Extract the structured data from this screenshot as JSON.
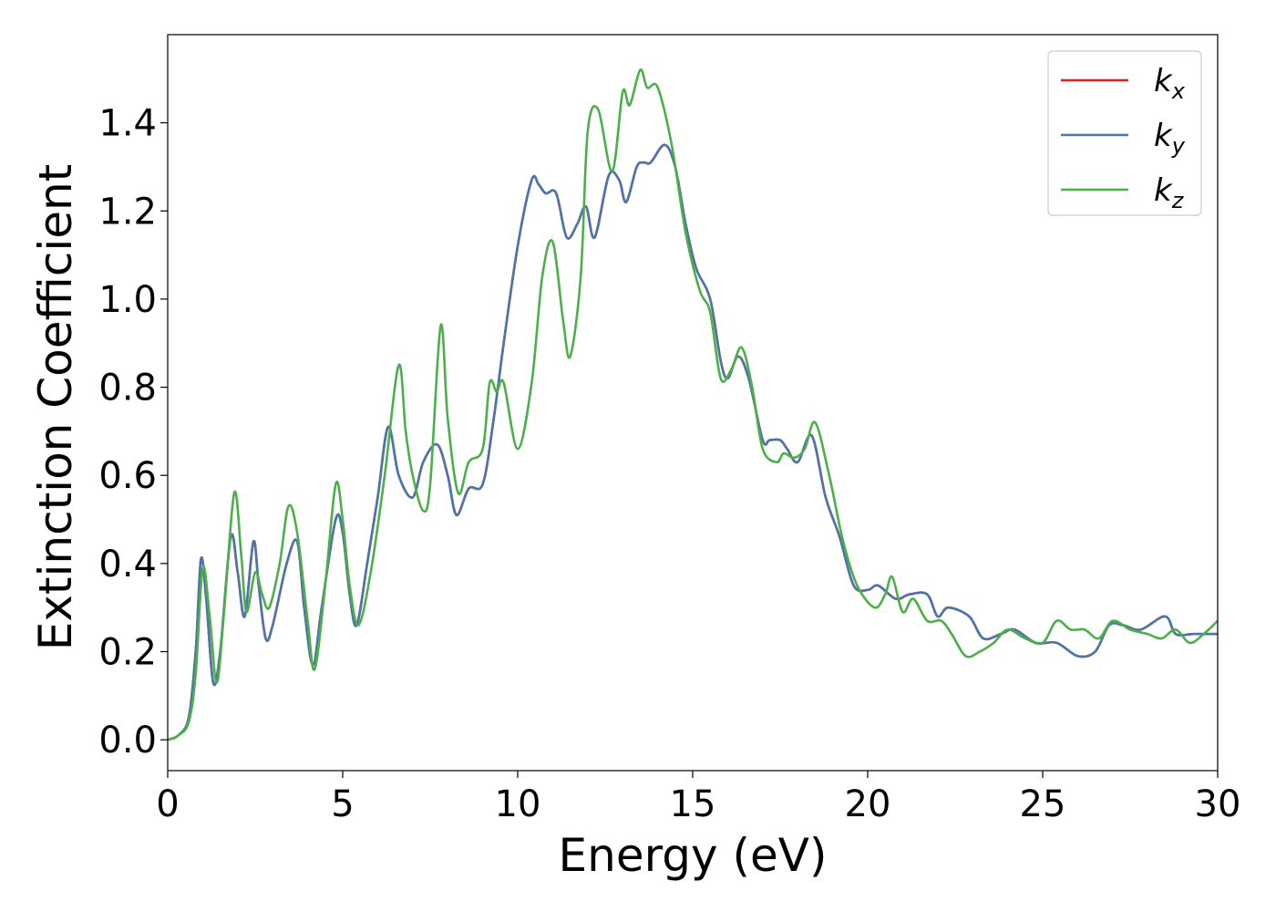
{
  "chart_data": {
    "type": "line",
    "title": "",
    "xlabel": "Energy (eV)",
    "ylabel": "Extinction Coefficient",
    "xlim": [
      0,
      30
    ],
    "ylim": [
      -0.07,
      1.6
    ],
    "xticks": [
      0,
      5,
      10,
      15,
      20,
      25,
      30
    ],
    "yticks": [
      "0.0",
      "0.2",
      "0.4",
      "0.6",
      "0.8",
      "1.0",
      "1.2",
      "1.4"
    ],
    "grid": false,
    "legend_position": "top-right",
    "series": [
      {
        "name": "k",
        "subscript": "x",
        "color": "#e41a1c",
        "points": [
          [
            0,
            0
          ],
          [
            0.3,
            0.01
          ],
          [
            0.6,
            0.05
          ],
          [
            0.8,
            0.2
          ],
          [
            0.95,
            0.41
          ],
          [
            1.1,
            0.32
          ],
          [
            1.3,
            0.13
          ],
          [
            1.5,
            0.2
          ],
          [
            1.8,
            0.46
          ],
          [
            2.0,
            0.38
          ],
          [
            2.2,
            0.28
          ],
          [
            2.45,
            0.45
          ],
          [
            2.6,
            0.35
          ],
          [
            2.8,
            0.23
          ],
          [
            3.0,
            0.26
          ],
          [
            3.4,
            0.4
          ],
          [
            3.7,
            0.45
          ],
          [
            3.9,
            0.3
          ],
          [
            4.15,
            0.17
          ],
          [
            4.4,
            0.3
          ],
          [
            4.8,
            0.5
          ],
          [
            5.0,
            0.47
          ],
          [
            5.2,
            0.33
          ],
          [
            5.4,
            0.26
          ],
          [
            5.7,
            0.4
          ],
          [
            6.0,
            0.55
          ],
          [
            6.3,
            0.71
          ],
          [
            6.6,
            0.6
          ],
          [
            7.0,
            0.55
          ],
          [
            7.3,
            0.63
          ],
          [
            7.7,
            0.67
          ],
          [
            8.0,
            0.6
          ],
          [
            8.25,
            0.51
          ],
          [
            8.6,
            0.57
          ],
          [
            9.0,
            0.58
          ],
          [
            9.3,
            0.72
          ],
          [
            9.6,
            0.9
          ],
          [
            10.0,
            1.12
          ],
          [
            10.4,
            1.27
          ],
          [
            10.6,
            1.26
          ],
          [
            10.8,
            1.24
          ],
          [
            11.1,
            1.24
          ],
          [
            11.4,
            1.14
          ],
          [
            11.7,
            1.17
          ],
          [
            11.95,
            1.21
          ],
          [
            12.2,
            1.14
          ],
          [
            12.6,
            1.28
          ],
          [
            12.9,
            1.27
          ],
          [
            13.1,
            1.22
          ],
          [
            13.4,
            1.3
          ],
          [
            13.6,
            1.31
          ],
          [
            13.8,
            1.31
          ],
          [
            14.2,
            1.35
          ],
          [
            14.5,
            1.3
          ],
          [
            14.8,
            1.17
          ],
          [
            15.1,
            1.07
          ],
          [
            15.5,
            1.0
          ],
          [
            15.8,
            0.86
          ],
          [
            16.0,
            0.82
          ],
          [
            16.3,
            0.87
          ],
          [
            16.6,
            0.82
          ],
          [
            17.0,
            0.68
          ],
          [
            17.2,
            0.68
          ],
          [
            17.5,
            0.68
          ],
          [
            17.7,
            0.66
          ],
          [
            18.0,
            0.63
          ],
          [
            18.4,
            0.69
          ],
          [
            18.8,
            0.55
          ],
          [
            19.2,
            0.46
          ],
          [
            19.6,
            0.35
          ],
          [
            20.0,
            0.34
          ],
          [
            20.3,
            0.35
          ],
          [
            20.8,
            0.32
          ],
          [
            21.2,
            0.33
          ],
          [
            21.7,
            0.33
          ],
          [
            22.0,
            0.28
          ],
          [
            22.3,
            0.3
          ],
          [
            22.9,
            0.28
          ],
          [
            23.3,
            0.23
          ],
          [
            23.8,
            0.24
          ],
          [
            24.2,
            0.25
          ],
          [
            24.8,
            0.22
          ],
          [
            25.4,
            0.22
          ],
          [
            26.0,
            0.19
          ],
          [
            26.5,
            0.2
          ],
          [
            26.9,
            0.26
          ],
          [
            27.3,
            0.26
          ],
          [
            27.8,
            0.25
          ],
          [
            28.5,
            0.28
          ],
          [
            28.8,
            0.24
          ],
          [
            29.3,
            0.24
          ],
          [
            30.0,
            0.24
          ]
        ]
      },
      {
        "name": "k",
        "subscript": "y",
        "color": "#4a76ac",
        "points": [
          [
            0,
            0
          ],
          [
            0.3,
            0.01
          ],
          [
            0.6,
            0.05
          ],
          [
            0.8,
            0.2
          ],
          [
            0.95,
            0.41
          ],
          [
            1.1,
            0.32
          ],
          [
            1.3,
            0.13
          ],
          [
            1.5,
            0.2
          ],
          [
            1.8,
            0.46
          ],
          [
            2.0,
            0.38
          ],
          [
            2.2,
            0.28
          ],
          [
            2.45,
            0.45
          ],
          [
            2.6,
            0.35
          ],
          [
            2.8,
            0.23
          ],
          [
            3.0,
            0.26
          ],
          [
            3.4,
            0.4
          ],
          [
            3.7,
            0.45
          ],
          [
            3.9,
            0.3
          ],
          [
            4.15,
            0.17
          ],
          [
            4.4,
            0.3
          ],
          [
            4.8,
            0.5
          ],
          [
            5.0,
            0.47
          ],
          [
            5.2,
            0.33
          ],
          [
            5.4,
            0.26
          ],
          [
            5.7,
            0.4
          ],
          [
            6.0,
            0.55
          ],
          [
            6.3,
            0.71
          ],
          [
            6.6,
            0.6
          ],
          [
            7.0,
            0.55
          ],
          [
            7.3,
            0.63
          ],
          [
            7.7,
            0.67
          ],
          [
            8.0,
            0.6
          ],
          [
            8.25,
            0.51
          ],
          [
            8.6,
            0.57
          ],
          [
            9.0,
            0.58
          ],
          [
            9.3,
            0.72
          ],
          [
            9.6,
            0.9
          ],
          [
            10.0,
            1.12
          ],
          [
            10.4,
            1.27
          ],
          [
            10.6,
            1.26
          ],
          [
            10.8,
            1.24
          ],
          [
            11.1,
            1.24
          ],
          [
            11.4,
            1.14
          ],
          [
            11.7,
            1.17
          ],
          [
            11.95,
            1.21
          ],
          [
            12.2,
            1.14
          ],
          [
            12.6,
            1.28
          ],
          [
            12.9,
            1.27
          ],
          [
            13.1,
            1.22
          ],
          [
            13.4,
            1.3
          ],
          [
            13.6,
            1.31
          ],
          [
            13.8,
            1.31
          ],
          [
            14.2,
            1.35
          ],
          [
            14.5,
            1.3
          ],
          [
            14.8,
            1.17
          ],
          [
            15.1,
            1.07
          ],
          [
            15.5,
            1.0
          ],
          [
            15.8,
            0.86
          ],
          [
            16.0,
            0.82
          ],
          [
            16.3,
            0.87
          ],
          [
            16.6,
            0.82
          ],
          [
            17.0,
            0.68
          ],
          [
            17.2,
            0.68
          ],
          [
            17.5,
            0.68
          ],
          [
            17.7,
            0.66
          ],
          [
            18.0,
            0.63
          ],
          [
            18.4,
            0.69
          ],
          [
            18.8,
            0.55
          ],
          [
            19.2,
            0.46
          ],
          [
            19.6,
            0.35
          ],
          [
            20.0,
            0.34
          ],
          [
            20.3,
            0.35
          ],
          [
            20.8,
            0.32
          ],
          [
            21.2,
            0.33
          ],
          [
            21.7,
            0.33
          ],
          [
            22.0,
            0.28
          ],
          [
            22.3,
            0.3
          ],
          [
            22.9,
            0.28
          ],
          [
            23.3,
            0.23
          ],
          [
            23.8,
            0.24
          ],
          [
            24.2,
            0.25
          ],
          [
            24.8,
            0.22
          ],
          [
            25.4,
            0.22
          ],
          [
            26.0,
            0.19
          ],
          [
            26.5,
            0.2
          ],
          [
            26.9,
            0.26
          ],
          [
            27.3,
            0.26
          ],
          [
            27.8,
            0.25
          ],
          [
            28.5,
            0.28
          ],
          [
            28.8,
            0.24
          ],
          [
            29.3,
            0.24
          ],
          [
            30.0,
            0.24
          ]
        ]
      },
      {
        "name": "k",
        "subscript": "z",
        "color": "#4daf4a",
        "points": [
          [
            0,
            0
          ],
          [
            0.3,
            0.01
          ],
          [
            0.6,
            0.04
          ],
          [
            0.8,
            0.15
          ],
          [
            1.0,
            0.39
          ],
          [
            1.2,
            0.28
          ],
          [
            1.4,
            0.13
          ],
          [
            1.6,
            0.28
          ],
          [
            1.9,
            0.56
          ],
          [
            2.1,
            0.42
          ],
          [
            2.25,
            0.29
          ],
          [
            2.5,
            0.38
          ],
          [
            2.7,
            0.33
          ],
          [
            2.9,
            0.3
          ],
          [
            3.2,
            0.4
          ],
          [
            3.45,
            0.53
          ],
          [
            3.7,
            0.47
          ],
          [
            4.0,
            0.27
          ],
          [
            4.2,
            0.16
          ],
          [
            4.5,
            0.35
          ],
          [
            4.8,
            0.58
          ],
          [
            5.0,
            0.5
          ],
          [
            5.2,
            0.35
          ],
          [
            5.45,
            0.26
          ],
          [
            5.8,
            0.38
          ],
          [
            6.2,
            0.6
          ],
          [
            6.6,
            0.85
          ],
          [
            6.8,
            0.7
          ],
          [
            7.0,
            0.6
          ],
          [
            7.3,
            0.52
          ],
          [
            7.5,
            0.58
          ],
          [
            7.8,
            0.94
          ],
          [
            8.0,
            0.73
          ],
          [
            8.3,
            0.56
          ],
          [
            8.6,
            0.63
          ],
          [
            9.0,
            0.66
          ],
          [
            9.2,
            0.81
          ],
          [
            9.4,
            0.79
          ],
          [
            9.6,
            0.81
          ],
          [
            10.0,
            0.66
          ],
          [
            10.4,
            0.81
          ],
          [
            10.7,
            1.05
          ],
          [
            11.0,
            1.13
          ],
          [
            11.3,
            0.95
          ],
          [
            11.5,
            0.87
          ],
          [
            11.8,
            1.05
          ],
          [
            12.0,
            1.38
          ],
          [
            12.3,
            1.43
          ],
          [
            12.7,
            1.29
          ],
          [
            13.0,
            1.47
          ],
          [
            13.2,
            1.44
          ],
          [
            13.5,
            1.52
          ],
          [
            13.7,
            1.48
          ],
          [
            14.0,
            1.48
          ],
          [
            14.4,
            1.35
          ],
          [
            14.8,
            1.15
          ],
          [
            15.2,
            1.02
          ],
          [
            15.5,
            0.97
          ],
          [
            15.8,
            0.82
          ],
          [
            16.1,
            0.84
          ],
          [
            16.4,
            0.89
          ],
          [
            16.7,
            0.8
          ],
          [
            17.0,
            0.66
          ],
          [
            17.4,
            0.63
          ],
          [
            17.6,
            0.65
          ],
          [
            17.9,
            0.64
          ],
          [
            18.2,
            0.66
          ],
          [
            18.5,
            0.72
          ],
          [
            18.9,
            0.6
          ],
          [
            19.3,
            0.45
          ],
          [
            19.7,
            0.35
          ],
          [
            20.2,
            0.3
          ],
          [
            20.5,
            0.33
          ],
          [
            20.7,
            0.37
          ],
          [
            21.0,
            0.29
          ],
          [
            21.3,
            0.32
          ],
          [
            21.7,
            0.27
          ],
          [
            22.1,
            0.27
          ],
          [
            22.4,
            0.24
          ],
          [
            22.8,
            0.19
          ],
          [
            23.2,
            0.2
          ],
          [
            23.6,
            0.22
          ],
          [
            24.0,
            0.25
          ],
          [
            24.5,
            0.23
          ],
          [
            25.0,
            0.22
          ],
          [
            25.4,
            0.27
          ],
          [
            25.8,
            0.25
          ],
          [
            26.2,
            0.25
          ],
          [
            26.6,
            0.23
          ],
          [
            27.0,
            0.27
          ],
          [
            27.5,
            0.25
          ],
          [
            28.0,
            0.24
          ],
          [
            28.4,
            0.23
          ],
          [
            28.8,
            0.25
          ],
          [
            29.2,
            0.22
          ],
          [
            29.6,
            0.24
          ],
          [
            30.0,
            0.27
          ]
        ]
      }
    ]
  }
}
